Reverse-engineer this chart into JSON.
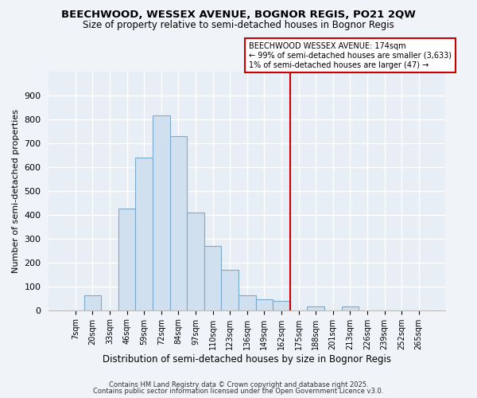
{
  "title": "BEECHWOOD, WESSEX AVENUE, BOGNOR REGIS, PO21 2QW",
  "subtitle": "Size of property relative to semi-detached houses in Bognor Regis",
  "xlabel": "Distribution of semi-detached houses by size in Bognor Regis",
  "ylabel": "Number of semi-detached properties",
  "bar_labels": [
    "7sqm",
    "20sqm",
    "33sqm",
    "46sqm",
    "59sqm",
    "72sqm",
    "84sqm",
    "97sqm",
    "110sqm",
    "123sqm",
    "136sqm",
    "149sqm",
    "162sqm",
    "175sqm",
    "188sqm",
    "201sqm",
    "213sqm",
    "226sqm",
    "239sqm",
    "252sqm",
    "265sqm"
  ],
  "bar_values": [
    0,
    62,
    0,
    425,
    638,
    815,
    730,
    410,
    270,
    170,
    62,
    45,
    38,
    0,
    15,
    0,
    15,
    0,
    0,
    0,
    0
  ],
  "bar_color": "#d0e0ee",
  "bar_edge_color": "#7aabcc",
  "vline_color": "#cc0000",
  "annotation_title": "BEECHWOOD WESSEX AVENUE: 174sqm",
  "annotation_line1": "← 99% of semi-detached houses are smaller (3,633)",
  "annotation_line2": "1% of semi-detached houses are larger (47) →",
  "annotation_box_color": "#ffffff",
  "annotation_box_edge": "#cc0000",
  "ylim": [
    0,
    1000
  ],
  "yticks": [
    0,
    100,
    200,
    300,
    400,
    500,
    600,
    700,
    800,
    900
  ],
  "footer1": "Contains HM Land Registry data © Crown copyright and database right 2025.",
  "footer2": "Contains public sector information licensed under the Open Government Licence v3.0.",
  "bg_color": "#f0f4f8",
  "plot_bg_color": "#e8eef5"
}
